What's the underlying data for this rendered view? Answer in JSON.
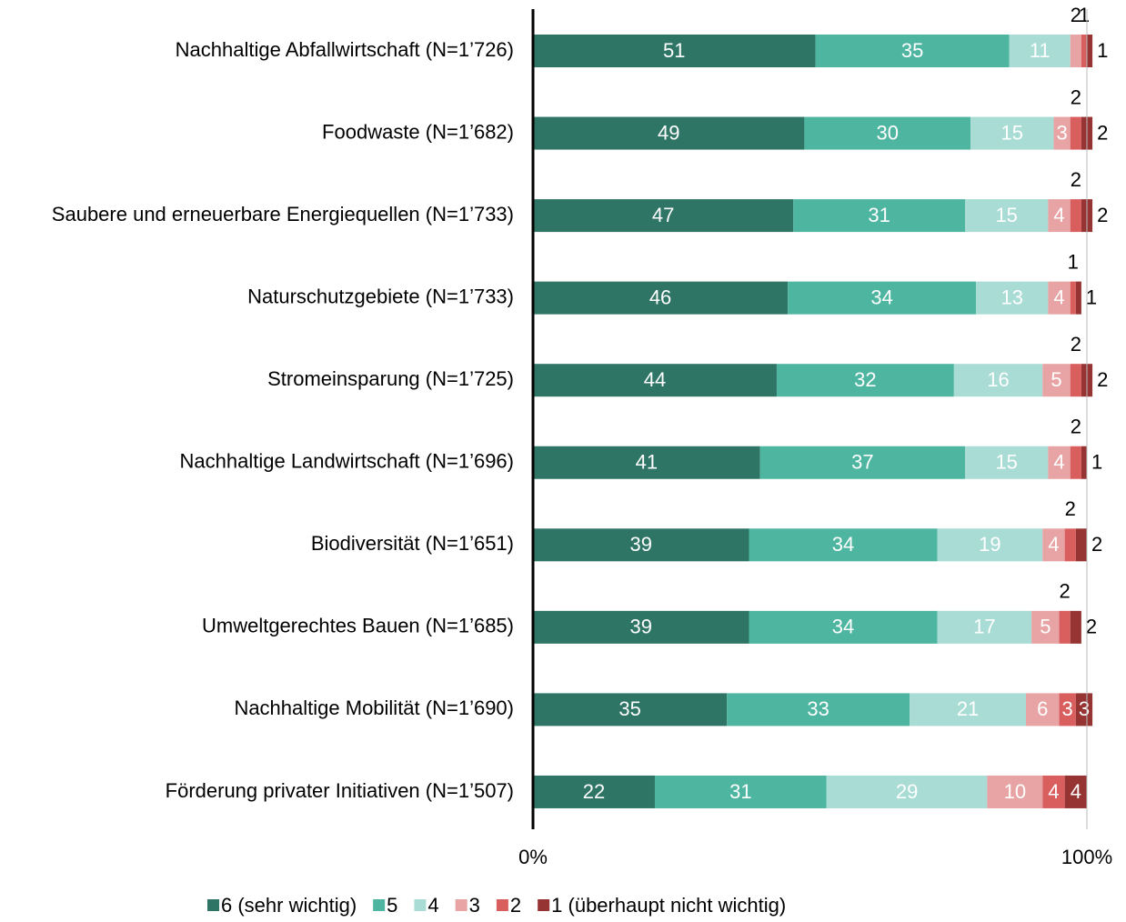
{
  "chart_data": {
    "type": "stacked-bar-horizontal",
    "categories": [
      "Nachhaltige Abfallwirtschaft (N=1’726)",
      "Foodwaste (N=1’682)",
      "Saubere und erneuerbare Energiequellen (N=1’733)",
      "Naturschutzgebiete (N=1’733)",
      "Stromeinsparung (N=1’725)",
      "Nachhaltige Landwirtschaft (N=1’696)",
      "Biodiversität (N=1’651)",
      "Umweltgerechtes Bauen (N=1’685)",
      "Nachhaltige Mobilität (N=1’690)",
      "Förderung privater Initiativen (N=1’507)"
    ],
    "series": [
      {
        "name": "6 (sehr wichtig)",
        "color": "#2e7566",
        "values": [
          51,
          49,
          47,
          46,
          44,
          41,
          39,
          39,
          35,
          22
        ]
      },
      {
        "name": "5",
        "color": "#4db5a0",
        "values": [
          35,
          30,
          31,
          34,
          32,
          37,
          34,
          34,
          33,
          31
        ]
      },
      {
        "name": "4",
        "color": "#a8dcd4",
        "values": [
          11,
          15,
          15,
          13,
          16,
          15,
          19,
          17,
          21,
          29
        ]
      },
      {
        "name": "3",
        "color": "#e8a4a4",
        "values": [
          2,
          3,
          4,
          4,
          5,
          4,
          4,
          5,
          6,
          10
        ]
      },
      {
        "name": "2",
        "color": "#d95f5f",
        "values": [
          1,
          2,
          2,
          1,
          2,
          2,
          2,
          2,
          3,
          4
        ]
      },
      {
        "name": "1 (überhaupt nicht wichtig)",
        "color": "#963434",
        "values": [
          1,
          2,
          2,
          1,
          2,
          1,
          2,
          2,
          3,
          4
        ]
      }
    ],
    "xlim": [
      0,
      100
    ],
    "xticks": [
      {
        "value": 0,
        "label": "0%"
      },
      {
        "value": 100,
        "label": "100%"
      }
    ],
    "legend": "bottom"
  }
}
